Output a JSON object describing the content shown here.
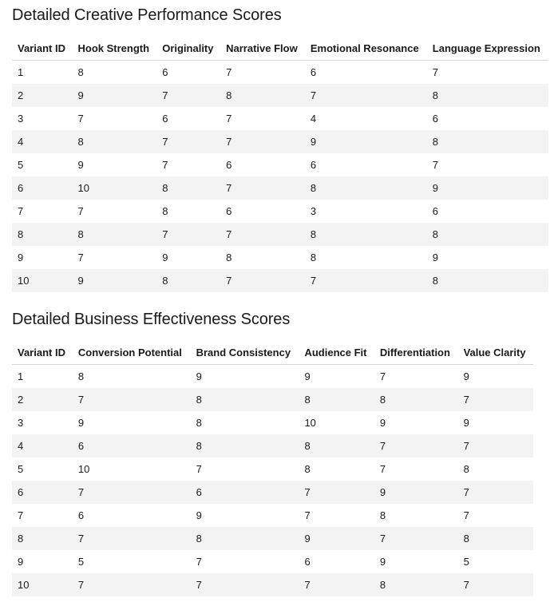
{
  "creative": {
    "title": "Detailed Creative Performance Scores",
    "headers": [
      "Variant ID",
      "Hook Strength",
      "Originality",
      "Narrative Flow",
      "Emotional Resonance",
      "Language Expression"
    ],
    "rows": [
      [
        "1",
        "8",
        "6",
        "7",
        "6",
        "7"
      ],
      [
        "2",
        "9",
        "7",
        "8",
        "7",
        "8"
      ],
      [
        "3",
        "7",
        "6",
        "7",
        "4",
        "6"
      ],
      [
        "4",
        "8",
        "7",
        "7",
        "9",
        "8"
      ],
      [
        "5",
        "9",
        "7",
        "6",
        "6",
        "7"
      ],
      [
        "6",
        "10",
        "8",
        "7",
        "8",
        "9"
      ],
      [
        "7",
        "7",
        "8",
        "6",
        "3",
        "6"
      ],
      [
        "8",
        "8",
        "7",
        "7",
        "8",
        "8"
      ],
      [
        "9",
        "7",
        "9",
        "8",
        "8",
        "9"
      ],
      [
        "10",
        "9",
        "8",
        "7",
        "7",
        "8"
      ]
    ]
  },
  "business": {
    "title": "Detailed Business Effectiveness Scores",
    "headers": [
      "Variant ID",
      "Conversion Potential",
      "Brand Consistency",
      "Audience Fit",
      "Differentiation",
      "Value Clarity"
    ],
    "rows": [
      [
        "1",
        "8",
        "9",
        "9",
        "7",
        "9"
      ],
      [
        "2",
        "7",
        "8",
        "8",
        "8",
        "7"
      ],
      [
        "3",
        "9",
        "8",
        "10",
        "9",
        "9"
      ],
      [
        "4",
        "6",
        "8",
        "8",
        "7",
        "7"
      ],
      [
        "5",
        "10",
        "7",
        "8",
        "7",
        "8"
      ],
      [
        "6",
        "7",
        "6",
        "7",
        "9",
        "7"
      ],
      [
        "7",
        "6",
        "9",
        "7",
        "8",
        "7"
      ],
      [
        "8",
        "7",
        "8",
        "9",
        "7",
        "8"
      ],
      [
        "9",
        "5",
        "7",
        "6",
        "9",
        "5"
      ],
      [
        "10",
        "7",
        "7",
        "7",
        "8",
        "7"
      ]
    ]
  }
}
